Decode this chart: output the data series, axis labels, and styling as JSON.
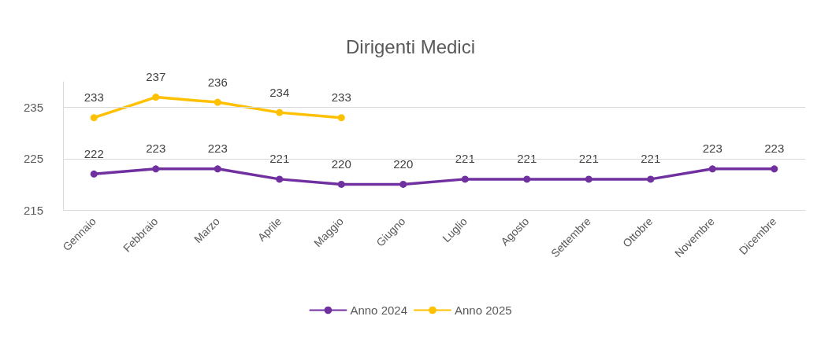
{
  "chart_data": {
    "type": "line",
    "title": "Dirigenti Medici",
    "categories": [
      "Gennaio",
      "Febbraio",
      "Marzo",
      "Aprile",
      "Maggio",
      "Giugno",
      "Luglio",
      "Agosto",
      "Settembre",
      "Ottobre",
      "Novembre",
      "Dicembre"
    ],
    "series": [
      {
        "name": "Anno 2024",
        "color": "#7030a0",
        "values": [
          222,
          223,
          223,
          221,
          220,
          220,
          221,
          221,
          221,
          221,
          223,
          223
        ]
      },
      {
        "name": "Anno 2025",
        "color": "#ffc000",
        "values": [
          233,
          237,
          236,
          234,
          233,
          null,
          null,
          null,
          null,
          null,
          null,
          null
        ]
      }
    ],
    "ylim": [
      215,
      240
    ],
    "yticks": [
      215,
      225,
      235
    ],
    "grid": "y",
    "legend": "bottom",
    "marker": "circle",
    "line_style": "solid",
    "data_labels": true
  }
}
